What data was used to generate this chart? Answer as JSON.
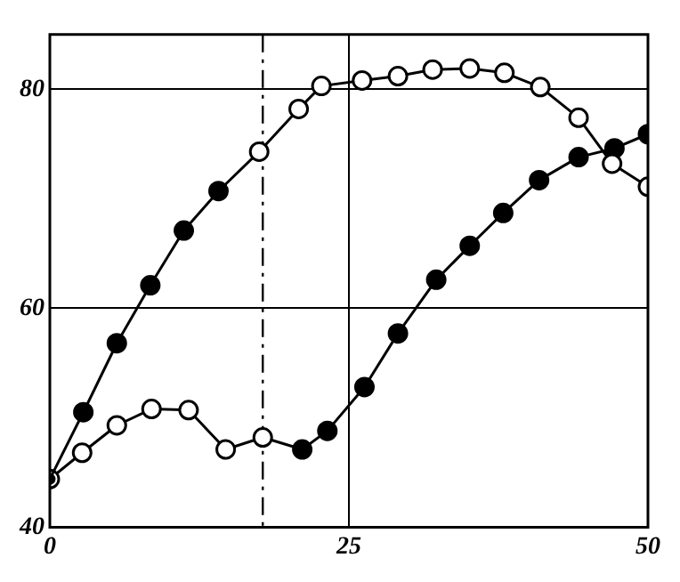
{
  "chart_data": {
    "type": "line",
    "xlim": [
      0,
      50
    ],
    "ylim": [
      40,
      85
    ],
    "xticks": [
      0,
      25,
      50
    ],
    "yticks": [
      40,
      60,
      80
    ],
    "grid": true,
    "legend": false,
    "marker": "circle",
    "line_style": "solid",
    "series": [
      {
        "color": "#000000",
        "x": [
          0,
          2.8,
          5.6,
          8.4,
          11.2,
          14.1,
          17.5,
          20.8,
          22.7,
          26.1,
          29.1,
          32.0,
          35.1,
          38.0,
          41.0,
          44.2,
          47.0,
          50
        ],
        "values": [
          44.4,
          50.5,
          56.8,
          62.1,
          67.1,
          70.7,
          74.3,
          78.2,
          80.3,
          80.8,
          81.2,
          81.8,
          81.9,
          81.5,
          80.2,
          77.4,
          73.2,
          71.1
        ],
        "colors": [
          "#000000",
          "#000000",
          "#000000",
          "#000000",
          "#000000",
          "#000000",
          "#ffffff",
          "#ffffff",
          "#ffffff",
          "#ffffff",
          "#ffffff",
          "#ffffff",
          "#ffffff",
          "#ffffff",
          "#ffffff",
          "#ffffff",
          "#ffffff",
          "#ffffff"
        ]
      },
      {
        "color": "#000000",
        "x": [
          0,
          2.7,
          5.6,
          8.5,
          11.6,
          14.7,
          17.8,
          21.1,
          23.2,
          26.3,
          29.1,
          32.3,
          35.1,
          37.9,
          40.9,
          44.2,
          47.2,
          50
        ],
        "values": [
          44.4,
          46.8,
          49.3,
          50.8,
          50.7,
          47.1,
          48.2,
          47.1,
          48.8,
          52.8,
          57.7,
          62.6,
          65.7,
          68.7,
          71.7,
          73.8,
          74.6,
          75.9
        ],
        "colors": [
          "#ffffff",
          "#ffffff",
          "#ffffff",
          "#ffffff",
          "#ffffff",
          "#ffffff",
          "#ffffff",
          "#000000",
          "#000000",
          "#000000",
          "#000000",
          "#000000",
          "#000000",
          "#000000",
          "#000000",
          "#000000",
          "#000000",
          "#000000"
        ]
      }
    ],
    "ref_lines": [
      {
        "axis": "x",
        "value": 17.8,
        "line_style": "dashed",
        "color": "#000000"
      }
    ]
  }
}
